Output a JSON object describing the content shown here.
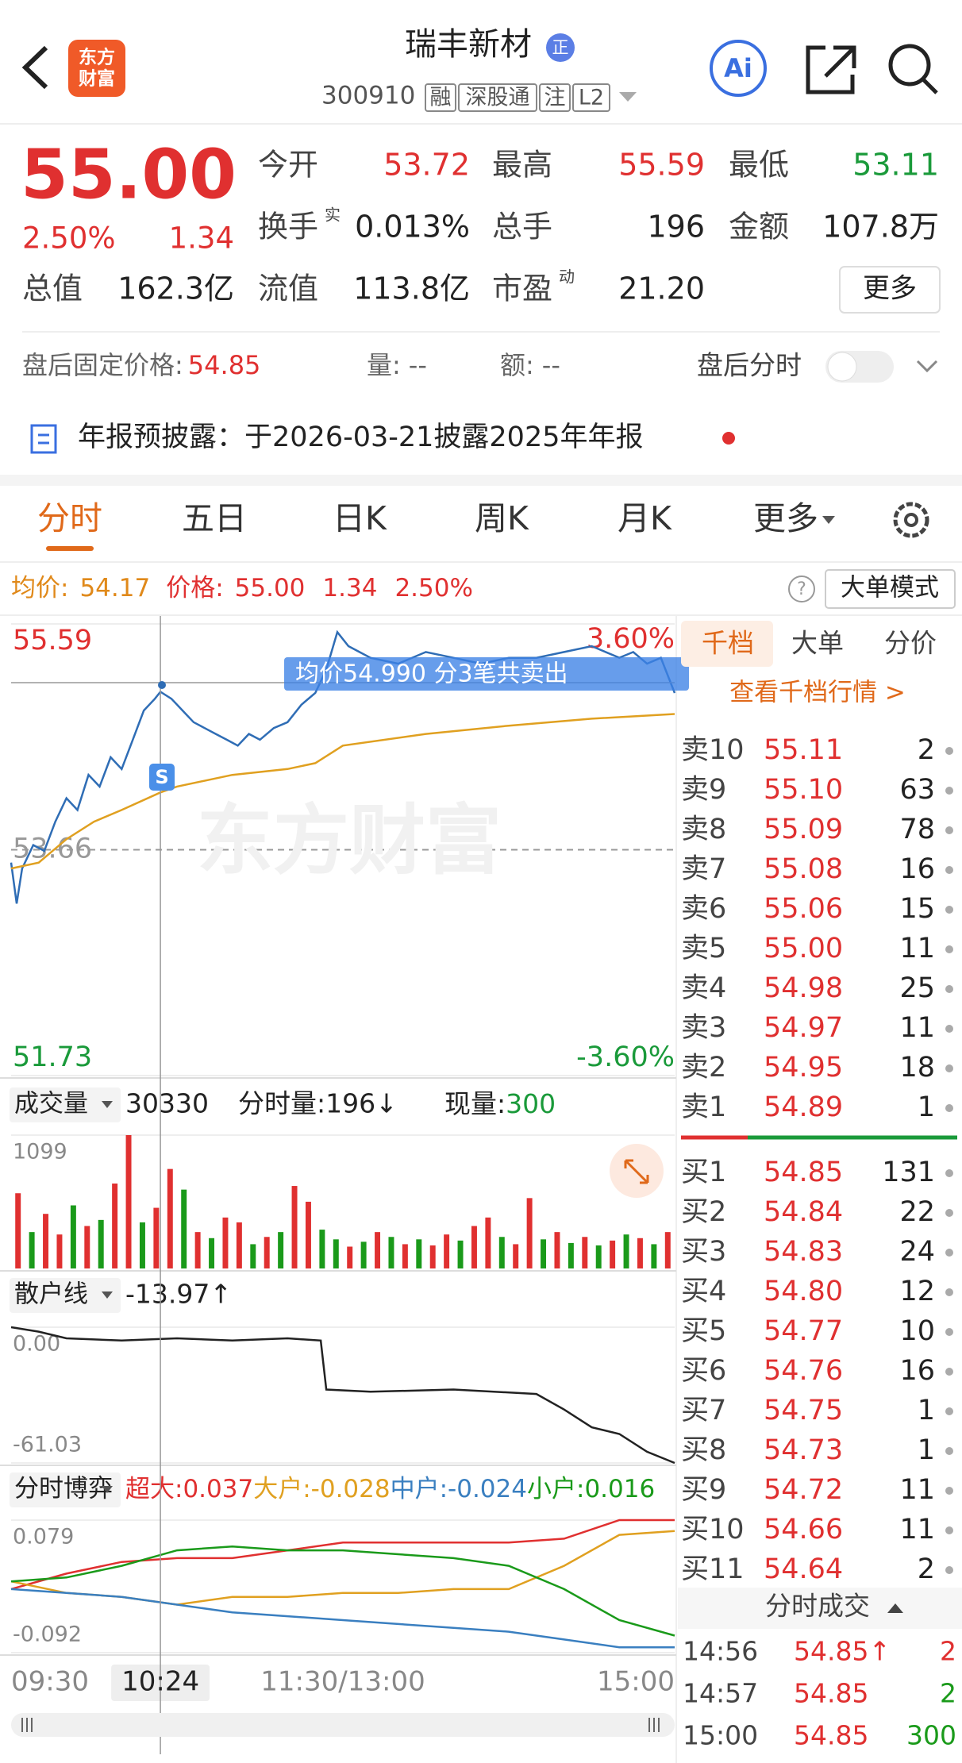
{
  "header": {
    "logo": [
      "东方",
      "财富"
    ],
    "title": "瑞丰新材",
    "badge": "正",
    "code": "300910",
    "tags": [
      "融",
      "深股通",
      "注",
      "L2"
    ],
    "ai": "Ai"
  },
  "quote": {
    "price": "55.00",
    "change_pct": "2.50%",
    "change": "1.34",
    "more": "更多",
    "stats": [
      {
        "label": "今开",
        "value": "53.72",
        "color": "#e03030"
      },
      {
        "label": "最高",
        "value": "55.59",
        "color": "#e03030"
      },
      {
        "label": "最低",
        "value": "53.11",
        "color": "#1a9a3a"
      },
      {
        "label": "换手",
        "sup": "实",
        "value": "0.013%",
        "color": "#222"
      },
      {
        "label": "总手",
        "value": "196",
        "color": "#222"
      },
      {
        "label": "金额",
        "value": "107.8万",
        "color": "#222"
      },
      {
        "label": "总值",
        "value": "162.3亿",
        "color": "#222"
      },
      {
        "label": "流值",
        "value": "113.8亿",
        "color": "#222"
      },
      {
        "label": "市盈",
        "sup": "动",
        "value": "21.20",
        "color": "#222"
      }
    ]
  },
  "after_hours": {
    "price_label": "盘后固定价格:",
    "price": "54.85",
    "volume_label": "量:",
    "volume": "--",
    "amount_label": "额:",
    "amount": "--",
    "toggle_label": "盘后分时"
  },
  "notice": {
    "title": "年报预披露：",
    "text": "于2026-03-21披露2025年年报"
  },
  "tabs": [
    "分时",
    "五日",
    "日K",
    "周K",
    "月K",
    "更多"
  ],
  "info": {
    "avg_label": "均价:",
    "avg": "54.17",
    "price_label": "价格:",
    "price": "55.00",
    "change": "1.34",
    "change_pct": "2.50%",
    "help": "?",
    "mode": "大单模式"
  },
  "chart_data": [
    {
      "type": "line",
      "ylim": [
        51.73,
        55.59
      ],
      "yticks": [
        51.73,
        53.66,
        55.59
      ],
      "pct_labels": [
        "-3.60%",
        "3.60%"
      ],
      "xlim": [
        0,
        240
      ],
      "xticks": [
        {
          "value": 0,
          "label": "09:30"
        },
        {
          "value": 54,
          "label": "10:24"
        },
        {
          "value": 120,
          "label": "11:30/13:00"
        },
        {
          "value": 240,
          "label": "15:00"
        }
      ],
      "watermark": "东方财富",
      "tooltip": "均价54.990  分3笔共卖出",
      "marker": "S",
      "series": [
        {
          "color": "#2f6db5",
          "x": [
            0,
            2,
            4,
            6,
            8,
            12,
            16,
            20,
            24,
            28,
            32,
            36,
            40,
            44,
            48,
            52,
            54,
            58,
            62,
            66,
            70,
            74,
            78,
            82,
            86,
            90,
            95,
            100,
            105,
            110,
            114,
            118,
            122,
            126,
            130,
            140,
            150,
            160,
            170,
            180,
            190,
            200,
            210,
            220,
            225,
            230,
            235,
            240
          ],
          "values": [
            53.55,
            53.2,
            53.5,
            53.6,
            53.7,
            53.65,
            53.9,
            54.1,
            54.0,
            54.3,
            54.2,
            54.45,
            54.35,
            54.6,
            54.85,
            54.95,
            55.01,
            54.95,
            54.85,
            54.75,
            54.7,
            54.65,
            54.6,
            54.55,
            54.65,
            54.6,
            54.7,
            54.75,
            54.9,
            55.0,
            55.2,
            55.52,
            55.4,
            55.35,
            55.3,
            55.25,
            55.35,
            55.3,
            55.25,
            55.3,
            55.3,
            55.35,
            55.4,
            55.3,
            55.35,
            55.25,
            55.3,
            55.0
          ]
        },
        {
          "color": "#e0a020",
          "x": [
            0,
            10,
            20,
            30,
            40,
            54,
            60,
            80,
            100,
            110,
            120,
            150,
            180,
            210,
            240
          ],
          "values": [
            53.5,
            53.55,
            53.75,
            53.9,
            54.0,
            54.15,
            54.2,
            54.3,
            54.35,
            54.4,
            54.55,
            54.65,
            54.72,
            54.78,
            54.82
          ]
        }
      ]
    },
    {
      "type": "bar",
      "title": "成交量",
      "value": "30330",
      "extra": "分时量:196↓",
      "current_label": "现量:",
      "current": "300",
      "ylim": [
        0,
        1099
      ],
      "yticks": [
        1099
      ],
      "up_color": "#e03030",
      "down_color": "#1a9a1a",
      "values": [
        620,
        300,
        450,
        280,
        520,
        350,
        400,
        700,
        1099,
        380,
        500,
        820,
        650,
        300,
        250,
        420,
        380,
        200,
        260,
        300,
        680,
        550,
        320,
        240,
        180,
        220,
        300,
        260,
        200,
        240,
        190,
        280,
        230,
        350,
        420,
        260,
        200,
        580,
        240,
        300,
        210,
        260,
        190,
        230,
        280,
        250,
        200,
        300
      ],
      "up": [
        true,
        false,
        true,
        true,
        false,
        true,
        false,
        true,
        true,
        false,
        true,
        true,
        false,
        true,
        false,
        true,
        true,
        false,
        true,
        false,
        true,
        true,
        false,
        false,
        true,
        false,
        true,
        false,
        true,
        false,
        true,
        true,
        false,
        true,
        true,
        false,
        true,
        true,
        false,
        true,
        false,
        true,
        false,
        true,
        false,
        true,
        false,
        true
      ]
    },
    {
      "type": "line",
      "title": "散户线",
      "value": "-13.97↑",
      "ylim": [
        -61.03,
        0
      ],
      "yticks": [
        -61.03,
        {
          "value": 0,
          "label": "0.00"
        }
      ],
      "xlim": [
        0,
        240
      ],
      "series": [
        {
          "color": "#222222",
          "x": [
            0,
            10,
            20,
            40,
            60,
            80,
            100,
            112,
            114,
            130,
            160,
            190,
            200,
            210,
            220,
            230,
            240
          ],
          "values": [
            0,
            -2,
            -5,
            -6,
            -5,
            -6,
            -5,
            -6,
            -28,
            -29,
            -28,
            -30,
            -37,
            -45,
            -48,
            -56,
            -61.03
          ]
        }
      ]
    },
    {
      "type": "line",
      "title": "分时博弈",
      "ylim": [
        -0.092,
        0.079
      ],
      "yticks": [
        -0.092,
        0.079
      ],
      "xlim": [
        0,
        240
      ],
      "series": [
        {
          "name": "超大:",
          "current": "0.037",
          "color": "#e03030",
          "x": [
            0,
            20,
            40,
            60,
            80,
            100,
            120,
            140,
            160,
            180,
            200,
            220,
            240
          ],
          "values": [
            -0.01,
            0.01,
            0.025,
            0.03,
            0.03,
            0.04,
            0.05,
            0.05,
            0.05,
            0.05,
            0.055,
            0.079,
            0.079
          ]
        },
        {
          "name": "大户:",
          "current": "-0.028",
          "color": "#e0a020",
          "x": [
            0,
            20,
            40,
            60,
            80,
            100,
            120,
            140,
            160,
            180,
            200,
            220,
            240
          ],
          "values": [
            0,
            -0.015,
            -0.02,
            -0.03,
            -0.02,
            -0.02,
            -0.015,
            -0.015,
            -0.01,
            -0.01,
            0.02,
            0.06,
            0.065
          ]
        },
        {
          "name": "中户:",
          "current": "-0.024",
          "color": "#3a7fc0",
          "x": [
            0,
            20,
            40,
            60,
            80,
            100,
            120,
            140,
            160,
            180,
            200,
            220,
            240
          ],
          "values": [
            -0.01,
            -0.015,
            -0.02,
            -0.03,
            -0.04,
            -0.045,
            -0.05,
            -0.055,
            -0.06,
            -0.065,
            -0.075,
            -0.085,
            -0.085
          ]
        },
        {
          "name": "小户:",
          "current": "0.016",
          "color": "#1a9a1a",
          "x": [
            0,
            20,
            40,
            60,
            80,
            100,
            120,
            140,
            160,
            180,
            200,
            220,
            240
          ],
          "values": [
            0,
            0.005,
            0.02,
            0.04,
            0.045,
            0.04,
            0.04,
            0.035,
            0.03,
            0.02,
            -0.01,
            -0.05,
            -0.07
          ]
        }
      ]
    }
  ],
  "order_book": {
    "tabs": [
      "千档",
      "大单",
      "分价"
    ],
    "link": "查看千档行情 >",
    "sell": [
      [
        "卖10",
        "55.11",
        "2"
      ],
      [
        "卖9",
        "55.10",
        "63"
      ],
      [
        "卖8",
        "55.09",
        "78"
      ],
      [
        "卖7",
        "55.08",
        "16"
      ],
      [
        "卖6",
        "55.06",
        "15"
      ],
      [
        "卖5",
        "55.00",
        "11"
      ],
      [
        "卖4",
        "54.98",
        "25"
      ],
      [
        "卖3",
        "54.97",
        "11"
      ],
      [
        "卖2",
        "54.95",
        "18"
      ],
      [
        "卖1",
        "54.89",
        "1"
      ]
    ],
    "buy": [
      [
        "买1",
        "54.85",
        "131"
      ],
      [
        "买2",
        "54.84",
        "22"
      ],
      [
        "买3",
        "54.83",
        "24"
      ],
      [
        "买4",
        "54.80",
        "12"
      ],
      [
        "买5",
        "54.77",
        "10"
      ],
      [
        "买6",
        "54.76",
        "16"
      ],
      [
        "买7",
        "54.75",
        "1"
      ],
      [
        "买8",
        "54.73",
        "1"
      ],
      [
        "买9",
        "54.72",
        "11"
      ],
      [
        "买10",
        "54.66",
        "11"
      ],
      [
        "买11",
        "54.64",
        "2"
      ]
    ],
    "trades_title": "分时成交",
    "trades": [
      [
        "14:56",
        "54.85↑",
        "2"
      ],
      [
        "14:57",
        "54.85",
        "2"
      ],
      [
        "15:00",
        "54.85",
        "300"
      ]
    ],
    "trade_colors": [
      "#e03030",
      "#1a9a1a",
      "#1a9a1a"
    ]
  }
}
